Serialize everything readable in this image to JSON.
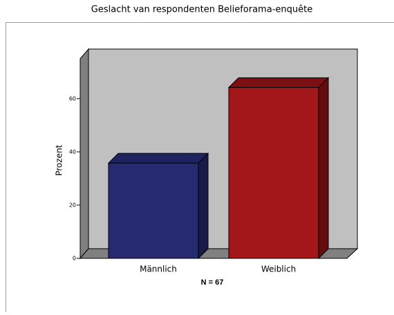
{
  "chart_data": {
    "type": "bar3d",
    "title": "Geslacht van respondenten Belieforama-enquête",
    "categories": [
      "Männlich",
      "Weiblich"
    ],
    "values": [
      35.8,
      64.2
    ],
    "colors": [
      "#262a70",
      "#a3161a"
    ],
    "side_colors": [
      "#181b4a",
      "#650c10"
    ],
    "top_colors": [
      "#1f2360",
      "#7c1014"
    ],
    "ylabel": "Prozent",
    "annotation": "N = 67",
    "ylim": [
      0,
      75
    ],
    "yticks": [
      0,
      20,
      40,
      60
    ],
    "grid": false
  }
}
